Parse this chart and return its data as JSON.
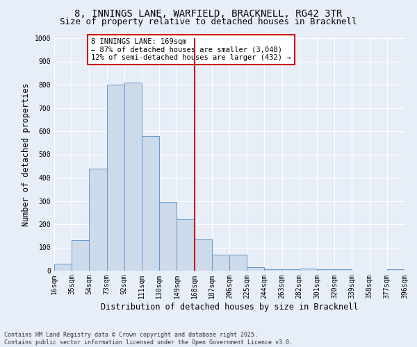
{
  "title": "8, INNINGS LANE, WARFIELD, BRACKNELL, RG42 3TR",
  "subtitle": "Size of property relative to detached houses in Bracknell",
  "xlabel": "Distribution of detached houses by size in Bracknell",
  "ylabel": "Number of detached properties",
  "bins": [
    16,
    35,
    54,
    73,
    92,
    111,
    130,
    149,
    168,
    187,
    206,
    225,
    244,
    263,
    282,
    301,
    320,
    339,
    358,
    377,
    396
  ],
  "bar_heights": [
    30,
    130,
    440,
    800,
    810,
    580,
    295,
    220,
    135,
    70,
    70,
    15,
    5,
    5,
    10,
    5,
    5,
    0,
    0,
    5
  ],
  "bar_color": "#ccdaea",
  "bar_edge_color": "#6699cc",
  "property_line_x": 168,
  "property_line_color": "#cc0000",
  "annotation_text": "8 INNINGS LANE: 169sqm\n← 87% of detached houses are smaller (3,048)\n12% of semi-detached houses are larger (432) →",
  "annotation_box_color": "#ffffff",
  "annotation_box_edge_color": "#cc0000",
  "ylim": [
    0,
    1000
  ],
  "yticks": [
    0,
    100,
    200,
    300,
    400,
    500,
    600,
    700,
    800,
    900,
    1000
  ],
  "footer_text": "Contains HM Land Registry data © Crown copyright and database right 2025.\nContains public sector information licensed under the Open Government Licence v3.0.",
  "bg_color": "#e8eef8",
  "plot_bg_color": "#e8eef8",
  "title_fontsize": 10,
  "subtitle_fontsize": 9,
  "tick_label_fontsize": 7,
  "axis_label_fontsize": 8.5,
  "annotation_fontsize": 7.5,
  "footer_fontsize": 6
}
